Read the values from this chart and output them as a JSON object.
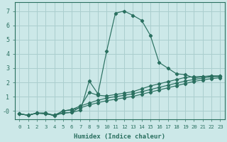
{
  "xlabel": "Humidex (Indice chaleur)",
  "background_color": "#cce8e8",
  "grid_color": "#aacece",
  "line_color": "#2a7060",
  "xlim": [
    -0.5,
    23.5
  ],
  "ylim": [
    -0.6,
    7.6
  ],
  "xticks": [
    0,
    1,
    2,
    3,
    4,
    5,
    6,
    7,
    8,
    9,
    10,
    11,
    12,
    13,
    14,
    15,
    16,
    17,
    18,
    19,
    20,
    21,
    22,
    23
  ],
  "yticks": [
    0,
    1,
    2,
    3,
    4,
    5,
    6,
    7
  ],
  "ytick_labels": [
    "-0",
    "1",
    "2",
    "3",
    "4",
    "5",
    "6",
    "7"
  ],
  "series": [
    {
      "x": [
        0,
        1,
        2,
        3,
        4,
        5,
        6,
        7,
        8,
        9,
        10,
        11,
        12,
        13,
        14,
        15,
        16,
        17,
        18,
        19,
        20,
        21,
        22,
        23
      ],
      "y": [
        -0.2,
        -0.3,
        -0.15,
        -0.15,
        -0.3,
        -0.15,
        -0.1,
        0.05,
        2.1,
        1.2,
        4.2,
        6.85,
        7.0,
        6.7,
        6.35,
        5.3,
        3.4,
        3.0,
        2.6,
        2.55,
        2.3,
        2.4,
        2.45,
        2.45
      ]
    },
    {
      "x": [
        0,
        1,
        2,
        3,
        4,
        5,
        6,
        7,
        8,
        9,
        10,
        11,
        12,
        13,
        14,
        15,
        16,
        17,
        18,
        19,
        20,
        21,
        22,
        23
      ],
      "y": [
        -0.2,
        -0.3,
        -0.15,
        -0.2,
        -0.3,
        -0.15,
        -0.1,
        0.3,
        1.3,
        1.1,
        1.05,
        1.15,
        1.25,
        1.35,
        1.55,
        1.75,
        1.9,
        2.05,
        2.2,
        2.35,
        2.4,
        2.42,
        2.45,
        2.45
      ]
    },
    {
      "x": [
        0,
        1,
        2,
        3,
        4,
        5,
        6,
        7,
        8,
        9,
        10,
        11,
        12,
        13,
        14,
        15,
        16,
        17,
        18,
        19,
        20,
        21,
        22,
        23
      ],
      "y": [
        -0.2,
        -0.3,
        -0.15,
        -0.2,
        -0.3,
        0.0,
        0.1,
        0.35,
        0.55,
        0.75,
        0.9,
        1.0,
        1.1,
        1.2,
        1.35,
        1.5,
        1.65,
        1.8,
        1.95,
        2.1,
        2.2,
        2.3,
        2.4,
        2.4
      ]
    },
    {
      "x": [
        0,
        1,
        2,
        3,
        4,
        5,
        6,
        7,
        8,
        9,
        10,
        11,
        12,
        13,
        14,
        15,
        16,
        17,
        18,
        19,
        20,
        21,
        22,
        23
      ],
      "y": [
        -0.2,
        -0.3,
        -0.15,
        -0.15,
        -0.35,
        0.0,
        0.08,
        0.22,
        0.42,
        0.58,
        0.72,
        0.82,
        0.92,
        1.02,
        1.17,
        1.32,
        1.47,
        1.62,
        1.77,
        1.92,
        2.07,
        2.17,
        2.27,
        2.32
      ]
    }
  ]
}
